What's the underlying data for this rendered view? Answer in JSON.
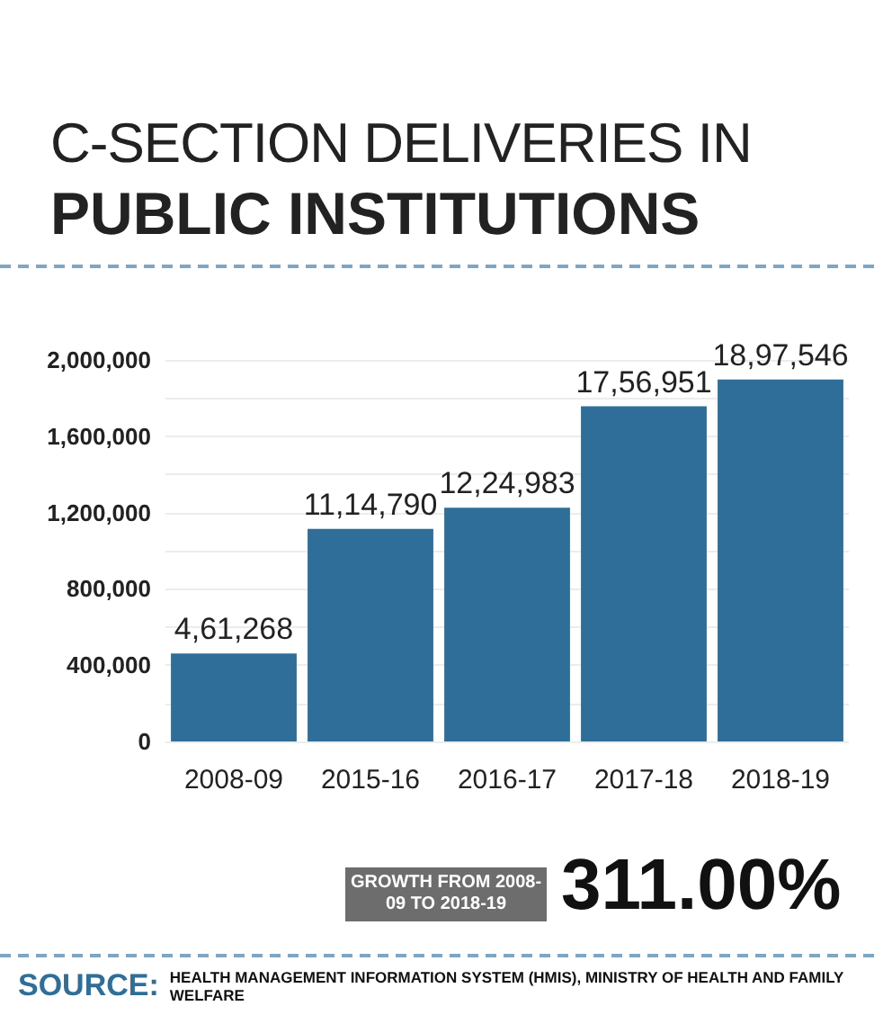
{
  "chart_data": {
    "type": "bar",
    "title": "C-SECTION DELIVERIES IN",
    "subtitle": "PUBLIC INSTITUTIONS",
    "categories": [
      "2008-09",
      "2015-16",
      "2016-17",
      "2017-18",
      "2018-19"
    ],
    "values": [
      461268,
      1114790,
      1224983,
      1756951,
      1897546
    ],
    "value_labels": [
      "4,61,268",
      "11,14,790",
      "12,24,983",
      "17,56,951",
      "18,97,546"
    ],
    "color": "#2e6e98",
    "ylim": [
      0,
      2000000
    ],
    "yticks": [
      0,
      {
        "value": 200000,
        "label": null
      },
      {
        "value": 400000,
        "label": "400,000"
      },
      {
        "value": 600000,
        "label": null
      },
      {
        "value": 800000,
        "label": "800,000"
      },
      {
        "value": 1000000,
        "label": null
      },
      {
        "value": 1200000,
        "label": "1,200,000"
      },
      {
        "value": 1400000,
        "label": null
      },
      {
        "value": 1600000,
        "label": "1,600,000"
      },
      {
        "value": 1800000,
        "label": null
      },
      {
        "value": 2000000,
        "label": "2,000,000"
      }
    ],
    "grid": "y",
    "annotations": [
      "GROWTH FROM 2008-09 TO 2018-19",
      "311.00%",
      "SOURCE: HEALTH MANAGEMENT INFORMATION SYSTEM (HMIS), MINISTRY OF HEALTH AND FAMILY WELFARE"
    ]
  }
}
